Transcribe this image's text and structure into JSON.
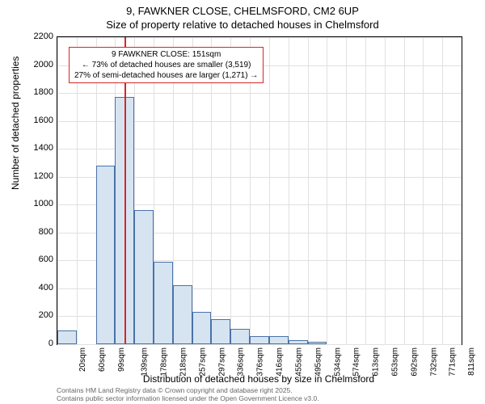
{
  "title_line1": "9, FAWKNER CLOSE, CHELMSFORD, CM2 6UP",
  "title_line2": "Size of property relative to detached houses in Chelmsford",
  "chart": {
    "type": "histogram",
    "ylabel": "Number of detached properties",
    "xlabel": "Distribution of detached houses by size in Chelmsford",
    "ylim": [
      0,
      2200
    ],
    "ytick_step": 200,
    "yticks": [
      0,
      200,
      400,
      600,
      800,
      1000,
      1200,
      1400,
      1600,
      1800,
      2000,
      2200
    ],
    "xticks": [
      "20sqm",
      "60sqm",
      "99sqm",
      "139sqm",
      "178sqm",
      "218sqm",
      "257sqm",
      "297sqm",
      "336sqm",
      "376sqm",
      "416sqm",
      "455sqm",
      "495sqm",
      "534sqm",
      "574sqm",
      "613sqm",
      "653sqm",
      "692sqm",
      "732sqm",
      "771sqm",
      "811sqm"
    ],
    "bar_count": 21,
    "values": [
      100,
      0,
      1280,
      1770,
      960,
      590,
      420,
      230,
      180,
      110,
      60,
      60,
      30,
      20,
      0,
      0,
      0,
      0,
      0,
      0,
      0
    ],
    "bar_fill": "#d6e4f2",
    "bar_border": "#4a72a8",
    "background_color": "#ffffff",
    "grid_color": "#e0e0e0",
    "marker": {
      "position_sqm": 151,
      "color": "#d62728"
    },
    "annotation": {
      "line1": "9 FAWKNER CLOSE: 151sqm",
      "line2": "← 73% of detached houses are smaller (3,519)",
      "line3": "27% of semi-detached houses are larger (1,271) →",
      "border_color": "#d62728"
    }
  },
  "footer": {
    "line1": "Contains HM Land Registry data © Crown copyright and database right 2025.",
    "line2": "Contains public sector information licensed under the Open Government Licence v3.0."
  }
}
